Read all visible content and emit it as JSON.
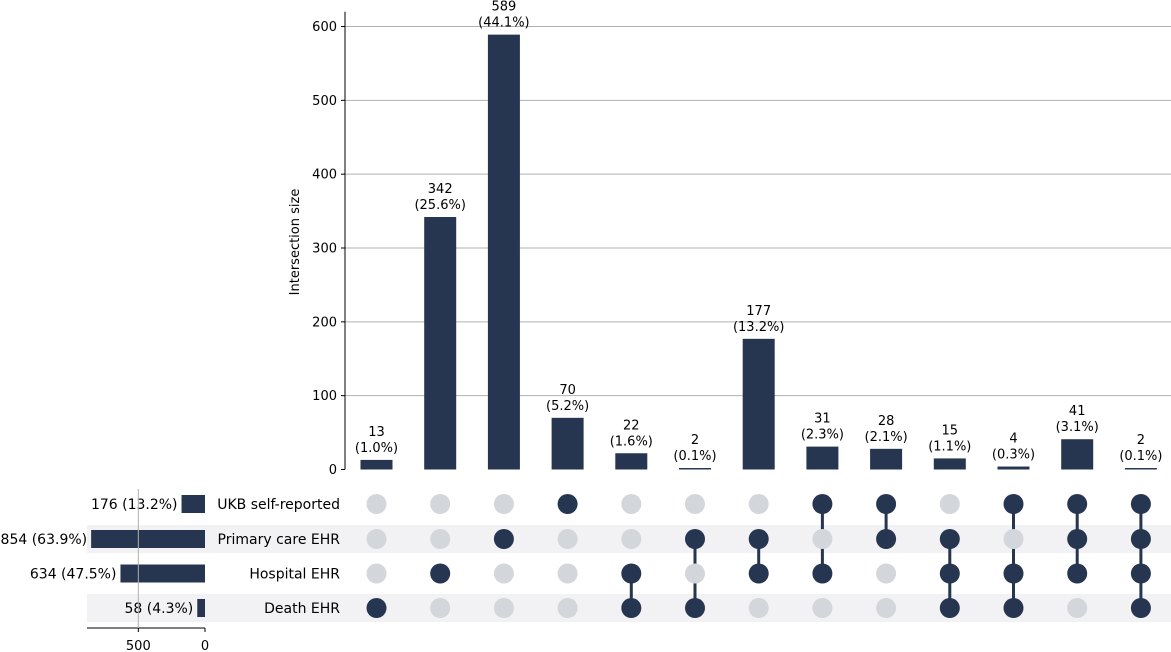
{
  "chart_data": {
    "type": "bar",
    "subtype": "upset",
    "ylabel": "Intersection size",
    "ylim": [
      0,
      620
    ],
    "yticks": [
      0,
      100,
      200,
      300,
      400,
      500,
      600
    ],
    "grid": true,
    "colors": {
      "bar": "#263550",
      "dot_active": "#263550",
      "dot_inactive": "#d3d6da",
      "grid": "#b0b0b0",
      "stripe": "#f2f2f5",
      "axis": "#000000"
    },
    "sets": [
      {
        "name": "UKB self-reported",
        "size": 176,
        "label": "176 (13.2%)"
      },
      {
        "name": "Primary care EHR",
        "size": 854,
        "label": "854 (63.9%)"
      },
      {
        "name": "Hospital EHR",
        "size": 634,
        "label": "634 (47.5%)"
      },
      {
        "name": "Death EHR",
        "size": 58,
        "label": "58 (4.3%)"
      }
    ],
    "set_size_ticks": [
      500,
      0
    ],
    "set_size_max": 885,
    "intersections": [
      {
        "value": 13,
        "label_value": "13",
        "label_pct": "(1.0%)",
        "members": [
          3
        ]
      },
      {
        "value": 342,
        "label_value": "342",
        "label_pct": "(25.6%)",
        "members": [
          2
        ]
      },
      {
        "value": 589,
        "label_value": "589",
        "label_pct": "(44.1%)",
        "members": [
          1
        ]
      },
      {
        "value": 70,
        "label_value": "70",
        "label_pct": "(5.2%)",
        "members": [
          0
        ]
      },
      {
        "value": 22,
        "label_value": "22",
        "label_pct": "(1.6%)",
        "members": [
          2,
          3
        ]
      },
      {
        "value": 2,
        "label_value": "2",
        "label_pct": "(0.1%)",
        "members": [
          1,
          3
        ]
      },
      {
        "value": 177,
        "label_value": "177",
        "label_pct": "(13.2%)",
        "members": [
          1,
          2
        ]
      },
      {
        "value": 31,
        "label_value": "31",
        "label_pct": "(2.3%)",
        "members": [
          0,
          2
        ]
      },
      {
        "value": 28,
        "label_value": "28",
        "label_pct": "(2.1%)",
        "members": [
          0,
          1
        ]
      },
      {
        "value": 15,
        "label_value": "15",
        "label_pct": "(1.1%)",
        "members": [
          1,
          2,
          3
        ]
      },
      {
        "value": 4,
        "label_value": "4",
        "label_pct": "(0.3%)",
        "members": [
          0,
          2,
          3
        ]
      },
      {
        "value": 41,
        "label_value": "41",
        "label_pct": "(3.1%)",
        "members": [
          0,
          1,
          2
        ]
      },
      {
        "value": 2,
        "label_value": "2",
        "label_pct": "(0.1%)",
        "members": [
          0,
          1,
          2,
          3
        ]
      }
    ]
  }
}
